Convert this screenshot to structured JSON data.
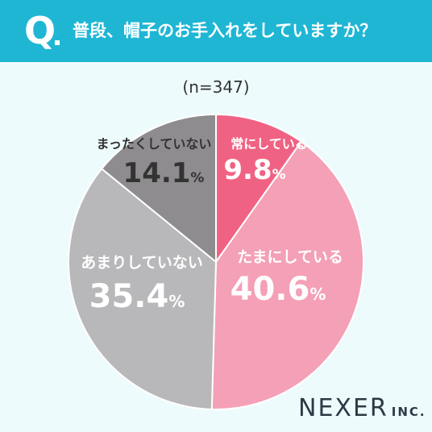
{
  "header": {
    "q_mark": "Q",
    "question": "普段、帽子のお手入れをしていますか？",
    "bg_color": "#1fb6d4"
  },
  "sample_label": "(n=347)",
  "logo": {
    "name": "NEXER",
    "suffix": "INC."
  },
  "chart_data": {
    "type": "pie",
    "title": "",
    "start_angle": "12 o'clock",
    "direction": "clockwise",
    "slices": [
      {
        "label": "常にしている",
        "value": 9.8,
        "display": "9.8",
        "unit": "%",
        "color": "#f06283",
        "text_color": "#ffffff"
      },
      {
        "label": "たまにしている",
        "value": 40.6,
        "display": "40.6",
        "unit": "%",
        "color": "#f4a0b6",
        "text_color": "#ffffff"
      },
      {
        "label": "あまりしていない",
        "value": 35.4,
        "display": "35.4",
        "unit": "%",
        "color": "#b8b7b9",
        "text_color": "#ffffff"
      },
      {
        "label": "まったくしていない",
        "value": 14.1,
        "display": "14.1",
        "unit": "%",
        "color": "#8e8c8e",
        "text_color": "#333333"
      }
    ]
  }
}
